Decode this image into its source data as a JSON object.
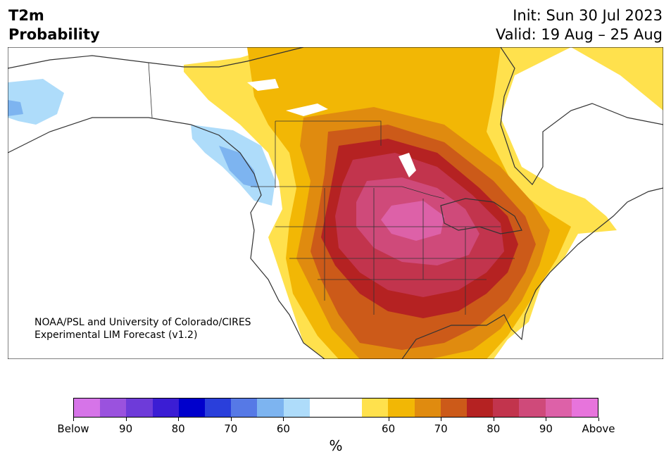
{
  "header": {
    "title_line1": "T2m",
    "title_line2": "Probability",
    "init": "Init: Sun 30 Jul 2023",
    "valid": "Valid: 19 Aug – 25 Aug"
  },
  "credit": {
    "line1": "NOAA/PSL and University of Colorado/CIRES",
    "line2": "Experimental LIM Forecast (v1.2)"
  },
  "colorbar": {
    "colors": [
      "#d674e8",
      "#9a52de",
      "#6e3bd9",
      "#3b1dd4",
      "#0000cc",
      "#2a3fdb",
      "#5679e6",
      "#7db4f0",
      "#aedcfa",
      "#ffffff",
      "#ffffff",
      "#ffe14d",
      "#f2b705",
      "#e08b0f",
      "#cc5a19",
      "#b52222",
      "#c2344d",
      "#cf4a7a",
      "#dd61a8",
      "#e774dc"
    ],
    "tick_labels": [
      "Below",
      "90",
      "80",
      "70",
      "60",
      "60",
      "70",
      "80",
      "90",
      "Above"
    ],
    "unit": "%"
  },
  "map_legend_meaning": {
    "warm_colors": "above-normal probability",
    "cool_colors": "below-normal probability"
  }
}
